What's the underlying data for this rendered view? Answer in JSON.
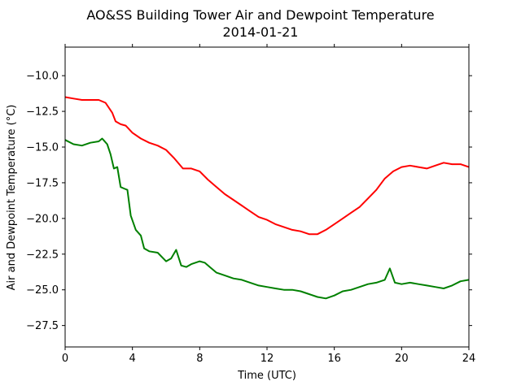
{
  "chart_data": {
    "type": "line",
    "title": "AO&SS Building Tower Air and Dewpoint Temperature",
    "subtitle": "2014-01-21",
    "xlabel": "Time (UTC)",
    "ylabel": "Air and Dewpoint Temperature (°C)",
    "xlim": [
      0,
      24
    ],
    "ylim": [
      -29.0,
      -8.0
    ],
    "x_ticks": [
      0,
      4,
      8,
      12,
      16,
      20,
      24
    ],
    "x_tick_labels": [
      "0",
      "4",
      "8",
      "12",
      "16",
      "20",
      "24"
    ],
    "y_ticks": [
      -10.0,
      -12.5,
      -15.0,
      -17.5,
      -20.0,
      -22.5,
      -25.0,
      -27.5
    ],
    "y_tick_labels": [
      "−10.0",
      "−12.5",
      "−15.0",
      "−17.5",
      "−20.0",
      "−22.5",
      "−25.0",
      "−27.5"
    ],
    "grid": false,
    "series": [
      {
        "color": "#ff0000",
        "x": [
          0,
          0.5,
          1,
          1.5,
          2,
          2.4,
          2.8,
          3,
          3.3,
          3.6,
          4,
          4.5,
          5,
          5.5,
          6,
          6.5,
          7,
          7.5,
          8,
          8.5,
          9,
          9.5,
          10,
          10.5,
          11,
          11.5,
          12,
          12.5,
          13,
          13.5,
          14,
          14.5,
          15,
          15.5,
          16,
          16.5,
          17,
          17.5,
          18,
          18.5,
          19,
          19.5,
          20,
          20.5,
          21,
          21.5,
          22,
          22.5,
          23,
          23.5,
          24
        ],
        "y": [
          -11.5,
          -11.6,
          -11.7,
          -11.7,
          -11.7,
          -11.9,
          -12.6,
          -13.2,
          -13.4,
          -13.5,
          -14.0,
          -14.4,
          -14.7,
          -14.9,
          -15.2,
          -15.8,
          -16.5,
          -16.5,
          -16.7,
          -17.3,
          -17.8,
          -18.3,
          -18.7,
          -19.1,
          -19.5,
          -19.9,
          -20.1,
          -20.4,
          -20.6,
          -20.8,
          -20.9,
          -21.1,
          -21.1,
          -20.8,
          -20.4,
          -20.0,
          -19.6,
          -19.2,
          -18.6,
          -18.0,
          -17.2,
          -16.7,
          -16.4,
          -16.3,
          -16.4,
          -16.5,
          -16.3,
          -16.1,
          -16.2,
          -16.2,
          -16.4
        ]
      },
      {
        "color": "#008000",
        "x": [
          0,
          0.5,
          1,
          1.5,
          2,
          2.2,
          2.5,
          2.7,
          2.9,
          3.1,
          3.3,
          3.5,
          3.7,
          3.9,
          4.2,
          4.5,
          4.7,
          5,
          5.5,
          6,
          6.3,
          6.6,
          6.9,
          7.2,
          7.5,
          8,
          8.3,
          8.6,
          9,
          9.5,
          10,
          10.5,
          11,
          11.5,
          12,
          12.5,
          13,
          13.5,
          14,
          14.5,
          15,
          15.5,
          16,
          16.5,
          17,
          17.5,
          18,
          18.5,
          19,
          19.3,
          19.6,
          20,
          20.5,
          21,
          21.5,
          22,
          22.5,
          23,
          23.5,
          24
        ],
        "y": [
          -14.5,
          -14.8,
          -14.9,
          -14.7,
          -14.6,
          -14.4,
          -14.8,
          -15.5,
          -16.5,
          -16.4,
          -17.8,
          -17.9,
          -18.0,
          -19.8,
          -20.8,
          -21.2,
          -22.1,
          -22.3,
          -22.4,
          -23.0,
          -22.8,
          -22.2,
          -23.3,
          -23.4,
          -23.2,
          -23.0,
          -23.1,
          -23.4,
          -23.8,
          -24.0,
          -24.2,
          -24.3,
          -24.5,
          -24.7,
          -24.8,
          -24.9,
          -25.0,
          -25.0,
          -25.1,
          -25.3,
          -25.5,
          -25.6,
          -25.4,
          -25.1,
          -25.0,
          -24.8,
          -24.6,
          -24.5,
          -24.3,
          -23.5,
          -24.5,
          -24.6,
          -24.5,
          -24.6,
          -24.7,
          -24.8,
          -24.9,
          -24.7,
          -24.4,
          -24.3
        ]
      }
    ]
  }
}
